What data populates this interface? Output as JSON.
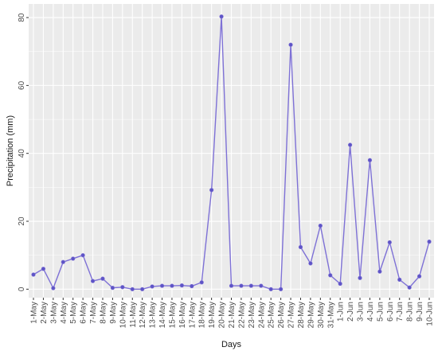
{
  "chart_data": {
    "type": "line",
    "title": "",
    "xlabel": "Days",
    "ylabel": "Precipitation (mm)",
    "ylim": [
      -2.5,
      84
    ],
    "y_ticks": [
      0,
      20,
      40,
      60,
      80
    ],
    "grid": true,
    "colors": {
      "panel": "#ebebeb",
      "grid_major": "#ffffff",
      "line": "#7e71d6",
      "point": "#5e54c6"
    },
    "categories": [
      "1-May",
      "2-May",
      "3-May",
      "4-May",
      "5-May",
      "6-May",
      "7-May",
      "8-May",
      "9-May",
      "10-May",
      "11-May",
      "12-May",
      "13-May",
      "14-May",
      "15-May",
      "16-May",
      "17-May",
      "18-May",
      "19-May",
      "20-May",
      "21-May",
      "22-May",
      "23-May",
      "24-May",
      "25-May",
      "26-May",
      "27-May",
      "28-May",
      "29-May",
      "30-May",
      "31-May",
      "1-Jun",
      "2-Jun",
      "3-Jun",
      "4-Jun",
      "5-Jun",
      "6-Jun",
      "7-Jun",
      "8-Jun",
      "9-Jun",
      "10-Jun"
    ],
    "series": [
      {
        "name": "",
        "values": [
          4.3,
          6.0,
          0.3,
          8.0,
          9.0,
          10.0,
          2.4,
          3.1,
          0.4,
          0.6,
          0.0,
          0.0,
          0.8,
          1.0,
          1.0,
          1.1,
          0.9,
          2.0,
          29.2,
          80.3,
          1.0,
          1.0,
          1.0,
          1.0,
          0.0,
          0.0,
          72.0,
          12.4,
          7.6,
          18.7,
          4.1,
          1.6,
          42.5,
          3.3,
          38.0,
          5.2,
          13.8,
          2.8,
          0.5,
          3.8,
          14.0
        ]
      }
    ]
  }
}
